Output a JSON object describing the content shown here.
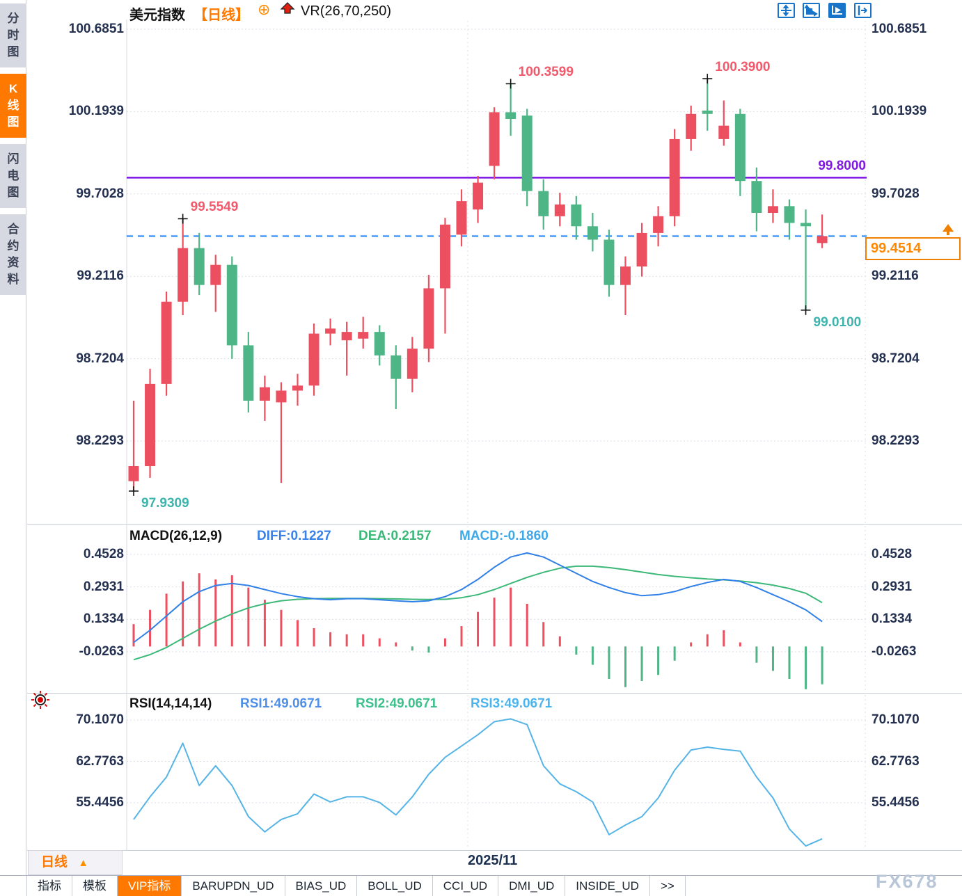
{
  "colors": {
    "up": "#ec4f5f",
    "down": "#4eb586",
    "diff_line": "#3080e8",
    "dea_line": "#3cb878",
    "rsi_line": "#55b4e6",
    "purple_line": "#7c12e6",
    "dashed_blue": "#1f83f0",
    "accent_orange": "#ff7800",
    "anno_red": "#f2596a",
    "anno_teal": "#3db4ac",
    "axis_text": "#243050",
    "grid": "#dcdfe8",
    "toolbar_blue": "#1874c8"
  },
  "sidebar": {
    "items": [
      {
        "label": "分时图",
        "selected": false
      },
      {
        "label": "K线图",
        "selected": true
      },
      {
        "label": "闪电图",
        "selected": false
      },
      {
        "label": "合约资料",
        "selected": false
      }
    ]
  },
  "header": {
    "symbol": "美元指数",
    "period_tag": "【日线】",
    "target_icon": "⊕",
    "indicator": "VR(26,70,250)",
    "toolbar_icons": [
      "crosshair-icon",
      "axis-zoom-icon",
      "axis-play-icon",
      "export-icon"
    ]
  },
  "main_axis": {
    "labels": [
      "100.6851",
      "100.1939",
      "99.7028",
      "99.2116",
      "98.7204",
      "98.2293"
    ],
    "values": [
      100.6851,
      100.1939,
      99.7028,
      99.2116,
      98.7204,
      98.2293
    ]
  },
  "overlays": {
    "purple_level": {
      "label": "99.8000",
      "value": 99.8
    },
    "last_price": {
      "label": "99.4514",
      "value": 99.4514
    }
  },
  "macd_panel": {
    "title": "MACD(26,12,9)",
    "diff_label": "DIFF:0.1227",
    "dea_label": "DEA:0.2157",
    "macd_label": "MACD:-0.1860",
    "axis_labels": [
      "0.4528",
      "0.2931",
      "0.1334",
      "-0.0263"
    ],
    "axis_values": [
      0.4528,
      0.2931,
      0.1334,
      -0.0263
    ]
  },
  "rsi_panel": {
    "title": "RSI(14,14,14)",
    "rsi1_label": "RSI1:49.0671",
    "rsi2_label": "RSI2:49.0671",
    "rsi3_label": "RSI3:49.0671",
    "axis_labels": [
      "70.1070",
      "62.7763",
      "55.4456"
    ],
    "axis_values": [
      70.107,
      62.7763,
      55.4456
    ]
  },
  "bottom": {
    "period_button": "日线",
    "period_arrow": "▲",
    "date_label": "2025/11",
    "watermark": "FX678",
    "tabs": [
      {
        "label": "指标",
        "selected": false
      },
      {
        "label": "模板",
        "selected": false
      },
      {
        "label": "VIP指标",
        "selected": true
      },
      {
        "label": "BARUPDN_UD",
        "selected": false
      },
      {
        "label": "BIAS_UD",
        "selected": false
      },
      {
        "label": "BOLL_UD",
        "selected": false
      },
      {
        "label": "CCI_UD",
        "selected": false
      },
      {
        "label": "DMI_UD",
        "selected": false
      },
      {
        "label": "INSIDE_UD",
        "selected": false
      },
      {
        "label": ">>",
        "selected": false
      }
    ]
  },
  "chart_data": [
    {
      "type": "candlestick",
      "title": "美元指数 日线",
      "ylim": [
        97.74,
        100.74
      ],
      "grid": true,
      "ohlc_dir": [
        [
          97.99,
          98.47,
          97.931,
          98.08,
          "u"
        ],
        [
          98.08,
          98.66,
          98.01,
          98.57,
          "u"
        ],
        [
          98.57,
          99.12,
          98.5,
          99.06,
          "u"
        ],
        [
          99.06,
          99.5549,
          98.98,
          99.38,
          "u"
        ],
        [
          99.38,
          99.47,
          99.1,
          99.16,
          "d"
        ],
        [
          99.16,
          99.34,
          99.0,
          99.28,
          "u"
        ],
        [
          99.28,
          99.33,
          98.72,
          98.8,
          "d"
        ],
        [
          98.8,
          98.88,
          98.4,
          98.47,
          "d"
        ],
        [
          98.47,
          98.62,
          98.35,
          98.55,
          "u"
        ],
        [
          98.46,
          98.58,
          97.98,
          98.53,
          "u"
        ],
        [
          98.53,
          98.63,
          98.44,
          98.56,
          "u"
        ],
        [
          98.56,
          98.93,
          98.5,
          98.87,
          "u"
        ],
        [
          98.87,
          98.96,
          98.8,
          98.9,
          "u"
        ],
        [
          98.83,
          98.94,
          98.62,
          98.88,
          "u"
        ],
        [
          98.84,
          98.97,
          98.78,
          98.88,
          "u"
        ],
        [
          98.88,
          98.92,
          98.68,
          98.74,
          "d"
        ],
        [
          98.74,
          98.8,
          98.42,
          98.6,
          "d"
        ],
        [
          98.6,
          98.85,
          98.52,
          98.78,
          "u"
        ],
        [
          98.78,
          99.22,
          98.7,
          99.14,
          "u"
        ],
        [
          99.14,
          99.56,
          98.87,
          99.52,
          "u"
        ],
        [
          99.46,
          99.73,
          99.39,
          99.66,
          "u"
        ],
        [
          99.61,
          99.81,
          99.53,
          99.77,
          "u"
        ],
        [
          99.87,
          100.22,
          99.79,
          100.19,
          "u"
        ],
        [
          100.19,
          100.3599,
          100.05,
          100.15,
          "d"
        ],
        [
          100.17,
          100.21,
          99.63,
          99.72,
          "d"
        ],
        [
          99.72,
          99.79,
          99.49,
          99.57,
          "d"
        ],
        [
          99.57,
          99.71,
          99.51,
          99.64,
          "u"
        ],
        [
          99.64,
          99.69,
          99.43,
          99.51,
          "d"
        ],
        [
          99.51,
          99.59,
          99.36,
          99.43,
          "d"
        ],
        [
          99.43,
          99.49,
          99.09,
          99.16,
          "d"
        ],
        [
          99.16,
          99.33,
          98.98,
          99.27,
          "u"
        ],
        [
          99.27,
          99.53,
          99.21,
          99.47,
          "u"
        ],
        [
          99.47,
          99.63,
          99.39,
          99.57,
          "u"
        ],
        [
          99.57,
          100.09,
          99.51,
          100.03,
          "u"
        ],
        [
          100.03,
          100.23,
          99.96,
          100.18,
          "u"
        ],
        [
          100.18,
          100.39,
          100.08,
          100.2,
          "d"
        ],
        [
          100.03,
          100.26,
          99.99,
          100.11,
          "u"
        ],
        [
          100.18,
          100.21,
          99.69,
          99.78,
          "d"
        ],
        [
          99.78,
          99.86,
          99.48,
          99.59,
          "d"
        ],
        [
          99.59,
          99.73,
          99.53,
          99.63,
          "u"
        ],
        [
          99.63,
          99.67,
          99.43,
          99.53,
          "d"
        ],
        [
          99.53,
          99.61,
          99.01,
          99.51,
          "d"
        ],
        [
          99.41,
          99.58,
          99.38,
          99.4514,
          "u"
        ]
      ],
      "markers": [
        {
          "candle": 1,
          "pos": "low",
          "label": "97.9309",
          "color": "teal"
        },
        {
          "candle": 4,
          "pos": "high",
          "label": "99.5549",
          "color": "red"
        },
        {
          "candle": 24,
          "pos": "high",
          "label": "100.3599",
          "color": "red"
        },
        {
          "candle": 36,
          "pos": "high",
          "label": "100.3900",
          "color": "red"
        },
        {
          "candle": 42,
          "pos": "low",
          "label": "99.0100",
          "color": "teal"
        }
      ]
    },
    {
      "type": "bar",
      "title": "MACD(26,12,9)",
      "hist": [
        0.11,
        0.18,
        0.26,
        0.32,
        0.36,
        0.33,
        0.35,
        0.29,
        0.23,
        0.18,
        0.13,
        0.09,
        0.07,
        0.06,
        0.06,
        0.04,
        0.02,
        -0.02,
        -0.03,
        0.04,
        0.1,
        0.17,
        0.24,
        0.29,
        0.21,
        0.12,
        0.05,
        -0.04,
        -0.09,
        -0.16,
        -0.2,
        -0.17,
        -0.14,
        -0.07,
        0.02,
        0.06,
        0.08,
        0.02,
        -0.08,
        -0.12,
        -0.16,
        -0.21,
        -0.186
      ],
      "diff": [
        0.02,
        0.08,
        0.15,
        0.22,
        0.27,
        0.3,
        0.31,
        0.3,
        0.28,
        0.26,
        0.245,
        0.235,
        0.23,
        0.235,
        0.235,
        0.23,
        0.225,
        0.22,
        0.225,
        0.245,
        0.28,
        0.33,
        0.39,
        0.44,
        0.46,
        0.44,
        0.4,
        0.36,
        0.32,
        0.29,
        0.265,
        0.25,
        0.255,
        0.27,
        0.295,
        0.315,
        0.33,
        0.32,
        0.29,
        0.255,
        0.22,
        0.18,
        0.1227
      ],
      "dea": [
        -0.065,
        -0.04,
        -0.005,
        0.04,
        0.085,
        0.125,
        0.16,
        0.19,
        0.21,
        0.225,
        0.232,
        0.235,
        0.236,
        0.236,
        0.236,
        0.235,
        0.234,
        0.232,
        0.231,
        0.232,
        0.24,
        0.255,
        0.28,
        0.31,
        0.34,
        0.365,
        0.385,
        0.395,
        0.395,
        0.388,
        0.378,
        0.366,
        0.354,
        0.345,
        0.338,
        0.332,
        0.328,
        0.322,
        0.314,
        0.302,
        0.285,
        0.262,
        0.2157
      ]
    },
    {
      "type": "line",
      "title": "RSI(14,14,14)",
      "values": [
        52.5,
        56.5,
        60.0,
        66.0,
        58.5,
        62.0,
        58.5,
        53.0,
        50.3,
        52.5,
        53.5,
        57.0,
        55.6,
        56.5,
        56.5,
        55.5,
        53.3,
        56.5,
        60.5,
        63.5,
        65.5,
        67.5,
        69.8,
        70.3,
        69.3,
        62.0,
        58.8,
        57.4,
        55.6,
        49.8,
        51.5,
        53.0,
        56.3,
        61.2,
        64.8,
        65.3,
        64.9,
        64.6,
        60.0,
        56.3,
        50.8,
        47.8,
        49.07
      ]
    }
  ]
}
